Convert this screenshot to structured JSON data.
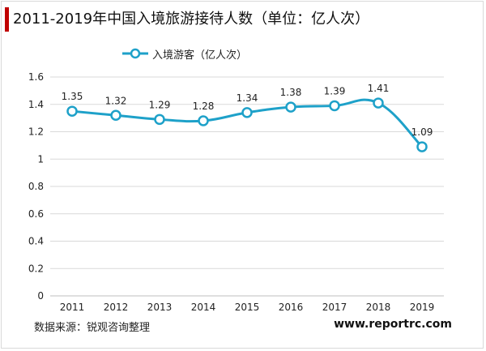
{
  "header": {
    "title": "2011-2019年中国入境旅游接待人数（单位：亿人次）"
  },
  "footer": {
    "source": "数据来源：锐观咨询整理",
    "site": "www.reportrc.com"
  },
  "colors": {
    "series": "#1ea1c9",
    "title_accent": "#c00000",
    "grid": "#d9d9d9"
  },
  "chart_data": {
    "type": "line",
    "title": "2011-2019年中国入境旅游接待人数（单位：亿人次）",
    "xlabel": "",
    "ylabel": "",
    "categories": [
      "2011",
      "2012",
      "2013",
      "2014",
      "2015",
      "2016",
      "2017",
      "2018",
      "2019"
    ],
    "series": [
      {
        "name": "入境游客（亿人次）",
        "values": [
          1.35,
          1.32,
          1.29,
          1.28,
          1.34,
          1.38,
          1.39,
          1.41,
          1.09
        ]
      }
    ],
    "data_labels": [
      "1.35",
      "1.32",
      "1.29",
      "1.28",
      "1.34",
      "1.38",
      "1.39",
      "1.41",
      "1.09"
    ],
    "ylim": [
      0,
      1.6
    ],
    "yticks": [
      "0",
      "0.2",
      "0.4",
      "0.6",
      "0.8",
      "1",
      "1.2",
      "1.4",
      "1.6"
    ],
    "grid": true,
    "legend": "top-left",
    "smooth": true
  }
}
